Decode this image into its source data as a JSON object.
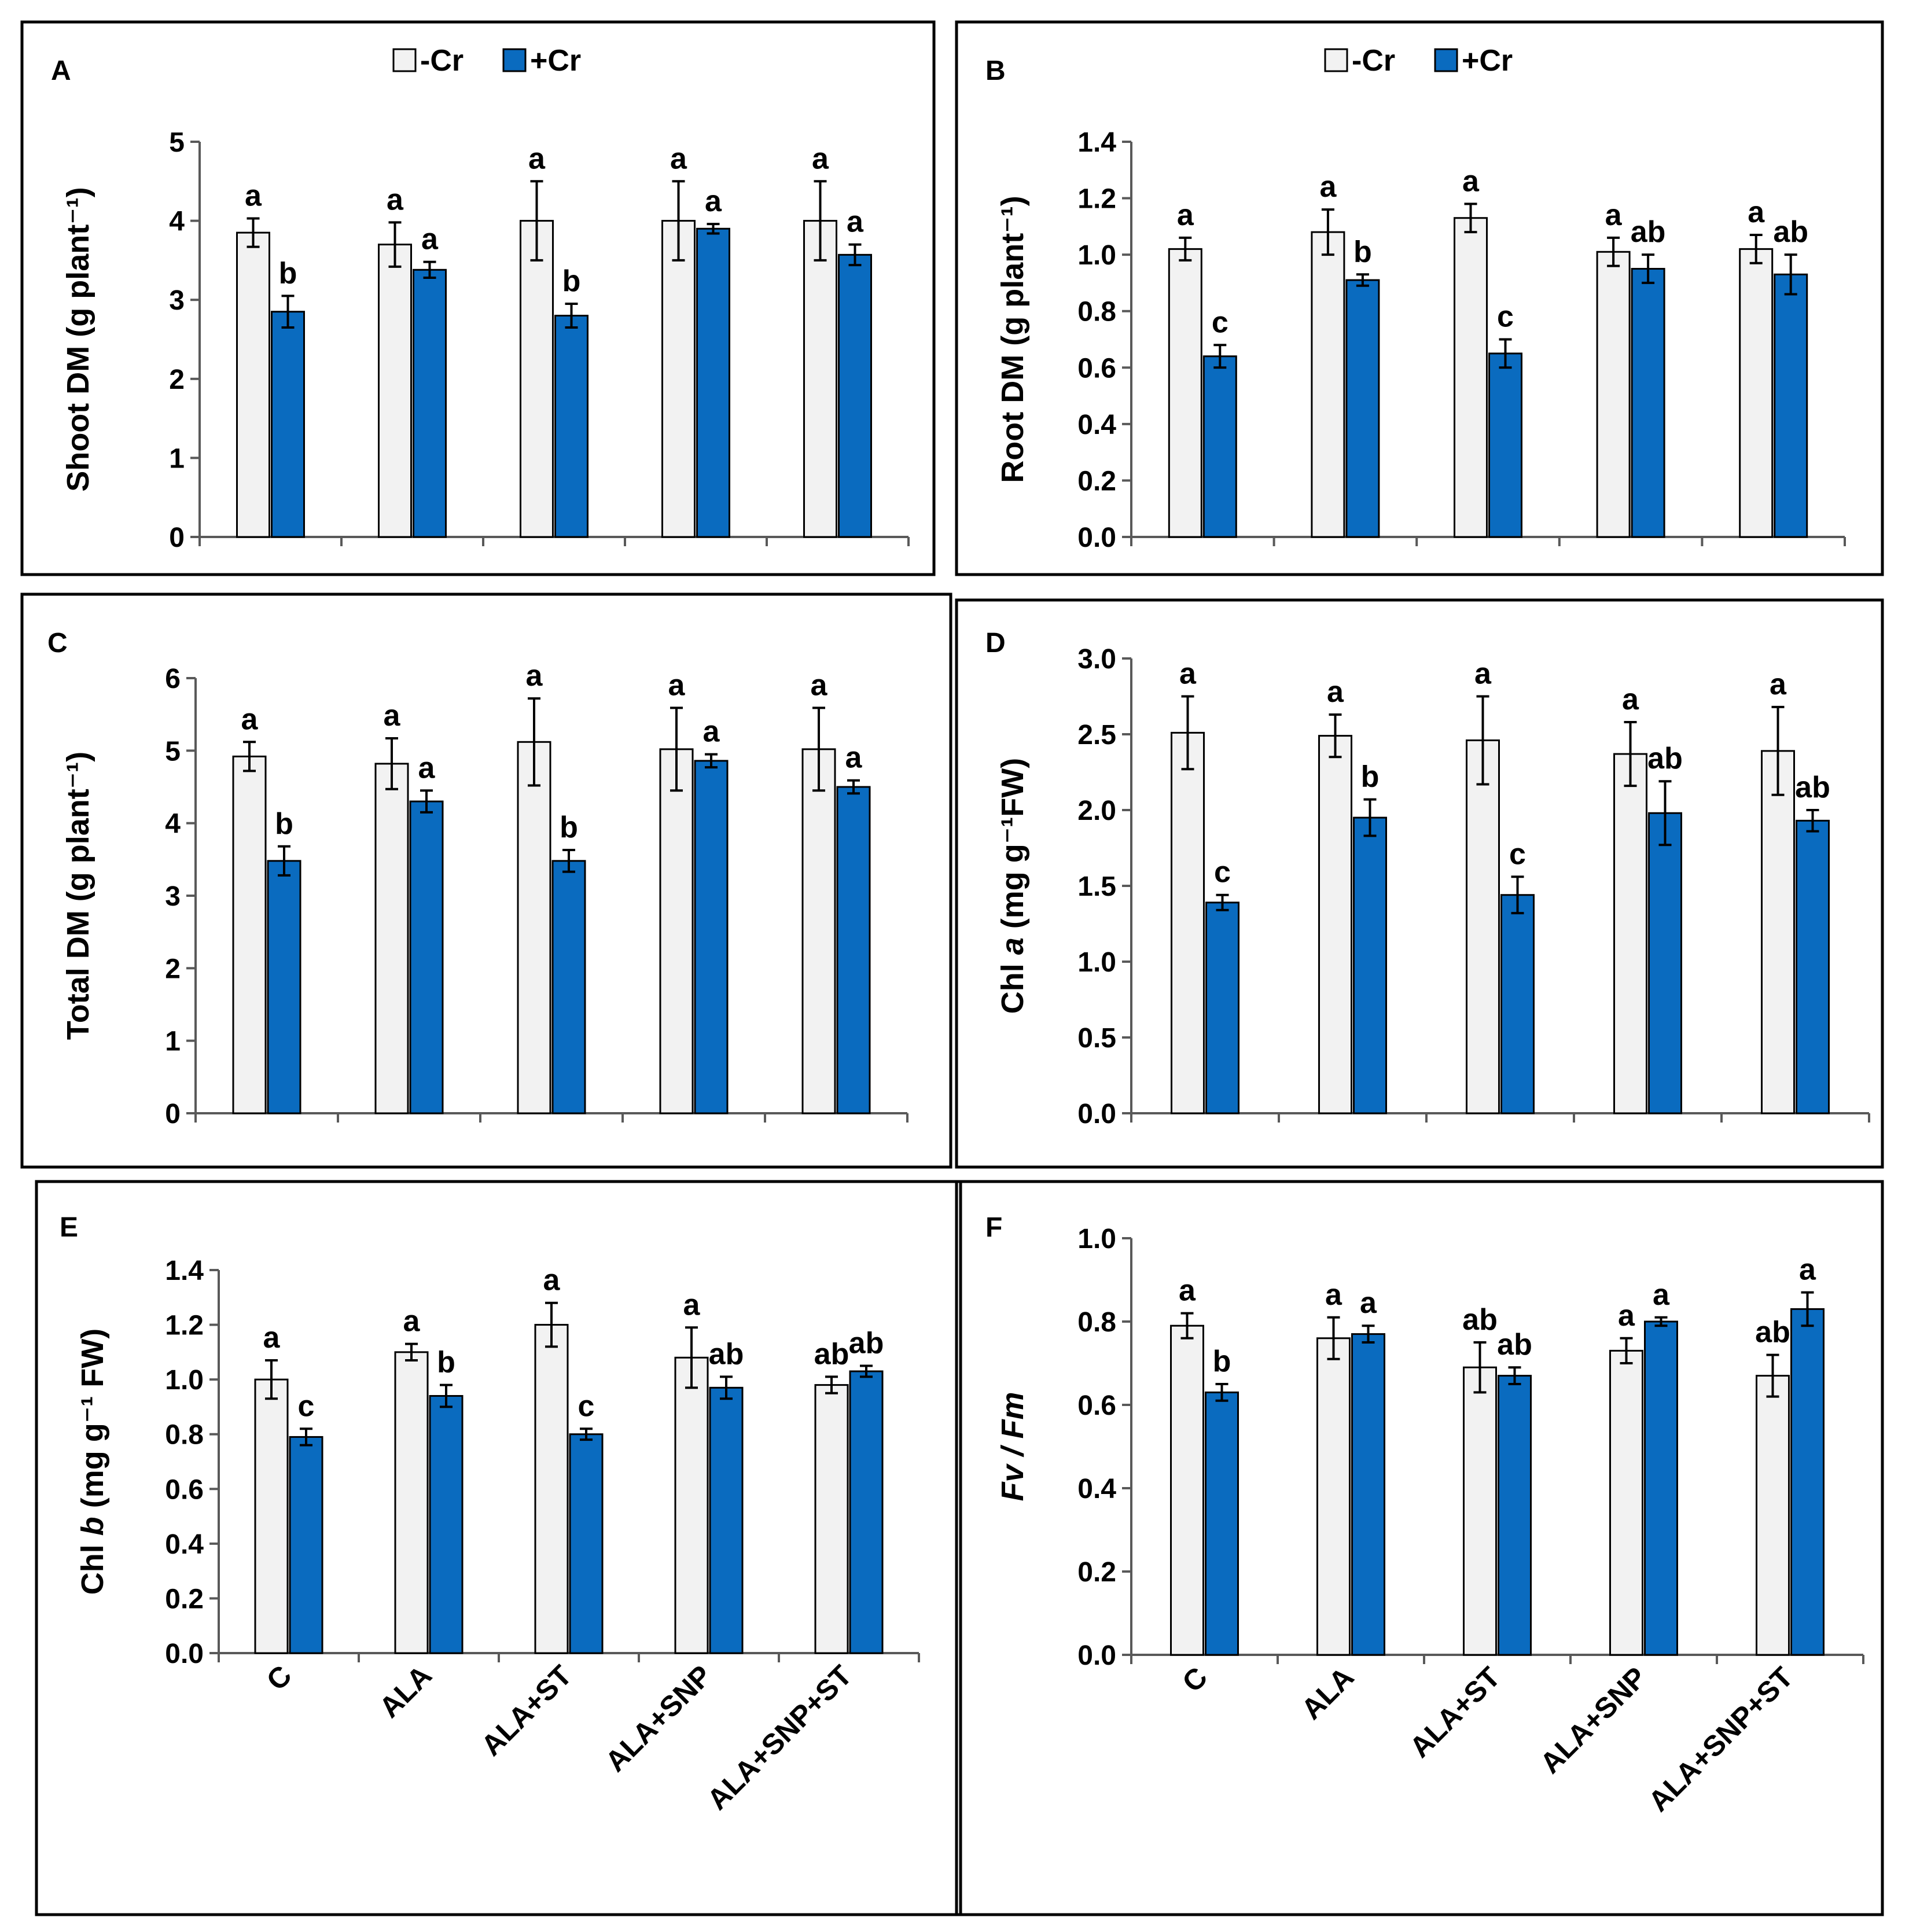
{
  "colors": {
    "minus_cr_fill": "#f2f2f2",
    "plus_cr_fill": "#0a6bbf",
    "axis": "#595959",
    "text": "#000000",
    "frame": "#000000"
  },
  "legend": {
    "minus_cr": "-Cr",
    "plus_cr": "+Cr"
  },
  "categories": [
    "C",
    "ALA",
    "ALA+ST",
    "ALA+SNP",
    "ALA+SNP+ST"
  ],
  "chart_data": [
    {
      "panel": "A",
      "type": "bar",
      "title": "",
      "ylabel": "Shoot DM (g plant⁻¹)",
      "ylim": [
        0,
        5
      ],
      "yticks": [
        "0",
        "1",
        "2",
        "3",
        "4",
        "5"
      ],
      "categories": [
        "C",
        "ALA",
        "ALA+ST",
        "ALA+SNP",
        "ALA+SNP+ST"
      ],
      "series": [
        {
          "name": "-Cr",
          "values": [
            3.85,
            3.7,
            4.0,
            4.0,
            4.0
          ],
          "errors": [
            0.18,
            0.28,
            0.5,
            0.5,
            0.5
          ],
          "letters": [
            "a",
            "a",
            "a",
            "a",
            "a"
          ]
        },
        {
          "name": "+Cr",
          "values": [
            2.85,
            3.38,
            2.8,
            3.9,
            3.57
          ],
          "errors": [
            0.2,
            0.1,
            0.15,
            0.06,
            0.13
          ],
          "letters": [
            "b",
            "a",
            "b",
            "a",
            "a"
          ]
        }
      ]
    },
    {
      "panel": "B",
      "type": "bar",
      "title": "",
      "ylabel": "Root DM (g plant⁻¹)",
      "ylim": [
        0,
        1.4
      ],
      "yticks": [
        "0.0",
        "0.2",
        "0.4",
        "0.6",
        "0.8",
        "1.0",
        "1.2",
        "1.4"
      ],
      "categories": [
        "C",
        "ALA",
        "ALA+ST",
        "ALA+SNP",
        "ALA+SNP+ST"
      ],
      "series": [
        {
          "name": "-Cr",
          "values": [
            1.02,
            1.08,
            1.13,
            1.01,
            1.02
          ],
          "errors": [
            0.04,
            0.08,
            0.05,
            0.05,
            0.05
          ],
          "letters": [
            "a",
            "a",
            "a",
            "a",
            "a"
          ]
        },
        {
          "name": "+Cr",
          "values": [
            0.64,
            0.91,
            0.65,
            0.95,
            0.93
          ],
          "errors": [
            0.04,
            0.02,
            0.05,
            0.05,
            0.07
          ],
          "letters": [
            "c",
            "b",
            "c",
            "ab",
            "ab"
          ]
        }
      ]
    },
    {
      "panel": "C",
      "type": "bar",
      "title": "",
      "ylabel": "Total DM (g plant⁻¹)",
      "ylim": [
        0,
        6
      ],
      "yticks": [
        "0",
        "1",
        "2",
        "3",
        "4",
        "5",
        "6"
      ],
      "categories": [
        "C",
        "ALA",
        "ALA+ST",
        "ALA+SNP",
        "ALA+SNP+ST"
      ],
      "series": [
        {
          "name": "-Cr",
          "values": [
            4.92,
            4.82,
            5.12,
            5.02,
            5.02
          ],
          "errors": [
            0.2,
            0.35,
            0.6,
            0.57,
            0.57
          ],
          "letters": [
            "a",
            "a",
            "a",
            "a",
            "a"
          ]
        },
        {
          "name": "+Cr",
          "values": [
            3.48,
            4.3,
            3.48,
            4.86,
            4.5
          ],
          "errors": [
            0.2,
            0.15,
            0.15,
            0.09,
            0.09
          ],
          "letters": [
            "b",
            "a",
            "b",
            "a",
            "a"
          ]
        }
      ]
    },
    {
      "panel": "D",
      "type": "bar",
      "title": "",
      "ylabel_pre": "Chl ",
      "ylabel_italic": "a",
      "ylabel_post": " (mg g⁻¹FW)",
      "ylim": [
        0,
        3.0
      ],
      "yticks": [
        "0.0",
        "0.5",
        "1.0",
        "1.5",
        "2.0",
        "2.5",
        "3.0"
      ],
      "categories": [
        "C",
        "ALA",
        "ALA+ST",
        "ALA+SNP",
        "ALA+SNP+ST"
      ],
      "series": [
        {
          "name": "-Cr",
          "values": [
            2.51,
            2.49,
            2.46,
            2.37,
            2.39
          ],
          "errors": [
            0.24,
            0.14,
            0.29,
            0.21,
            0.29
          ],
          "letters": [
            "a",
            "a",
            "a",
            "a",
            "a"
          ]
        },
        {
          "name": "+Cr",
          "values": [
            1.39,
            1.95,
            1.44,
            1.98,
            1.93
          ],
          "errors": [
            0.05,
            0.12,
            0.12,
            0.21,
            0.07
          ],
          "letters": [
            "c",
            "b",
            "c",
            "ab",
            "ab"
          ]
        }
      ]
    },
    {
      "panel": "E",
      "type": "bar",
      "title": "",
      "ylabel_pre": "Chl ",
      "ylabel_italic": "b",
      "ylabel_post": " (mg g⁻¹ FW)",
      "ylim": [
        0,
        1.4
      ],
      "yticks": [
        "0.0",
        "0.2",
        "0.4",
        "0.6",
        "0.8",
        "1.0",
        "1.2",
        "1.4"
      ],
      "categories": [
        "C",
        "ALA",
        "ALA+ST",
        "ALA+SNP",
        "ALA+SNP+ST"
      ],
      "series": [
        {
          "name": "-Cr",
          "values": [
            1.0,
            1.1,
            1.2,
            1.08,
            0.98
          ],
          "errors": [
            0.07,
            0.03,
            0.08,
            0.11,
            0.03
          ],
          "letters": [
            "a",
            "a",
            "a",
            "a",
            "ab"
          ]
        },
        {
          "name": "+Cr",
          "values": [
            0.79,
            0.94,
            0.8,
            0.97,
            1.03
          ],
          "errors": [
            0.03,
            0.04,
            0.02,
            0.04,
            0.02
          ],
          "letters": [
            "c",
            "b",
            "c",
            "ab",
            "ab"
          ]
        }
      ]
    },
    {
      "panel": "F",
      "type": "bar",
      "title": "",
      "ylabel_italic": "Fv / Fm",
      "ylim": [
        0,
        1.0
      ],
      "yticks": [
        "0.0",
        "0.2",
        "0.4",
        "0.6",
        "0.8",
        "1.0"
      ],
      "categories": [
        "C",
        "ALA",
        "ALA+ST",
        "ALA+SNP",
        "ALA+SNP+ST"
      ],
      "series": [
        {
          "name": "-Cr",
          "values": [
            0.79,
            0.76,
            0.69,
            0.73,
            0.67
          ],
          "errors": [
            0.03,
            0.05,
            0.06,
            0.03,
            0.05
          ],
          "letters": [
            "a",
            "a",
            "ab",
            "a",
            "ab"
          ]
        },
        {
          "name": "+Cr",
          "values": [
            0.63,
            0.77,
            0.67,
            0.8,
            0.83
          ],
          "errors": [
            0.02,
            0.02,
            0.02,
            0.01,
            0.04
          ],
          "letters": [
            "b",
            "a",
            "ab",
            "a",
            "a"
          ]
        }
      ]
    }
  ]
}
